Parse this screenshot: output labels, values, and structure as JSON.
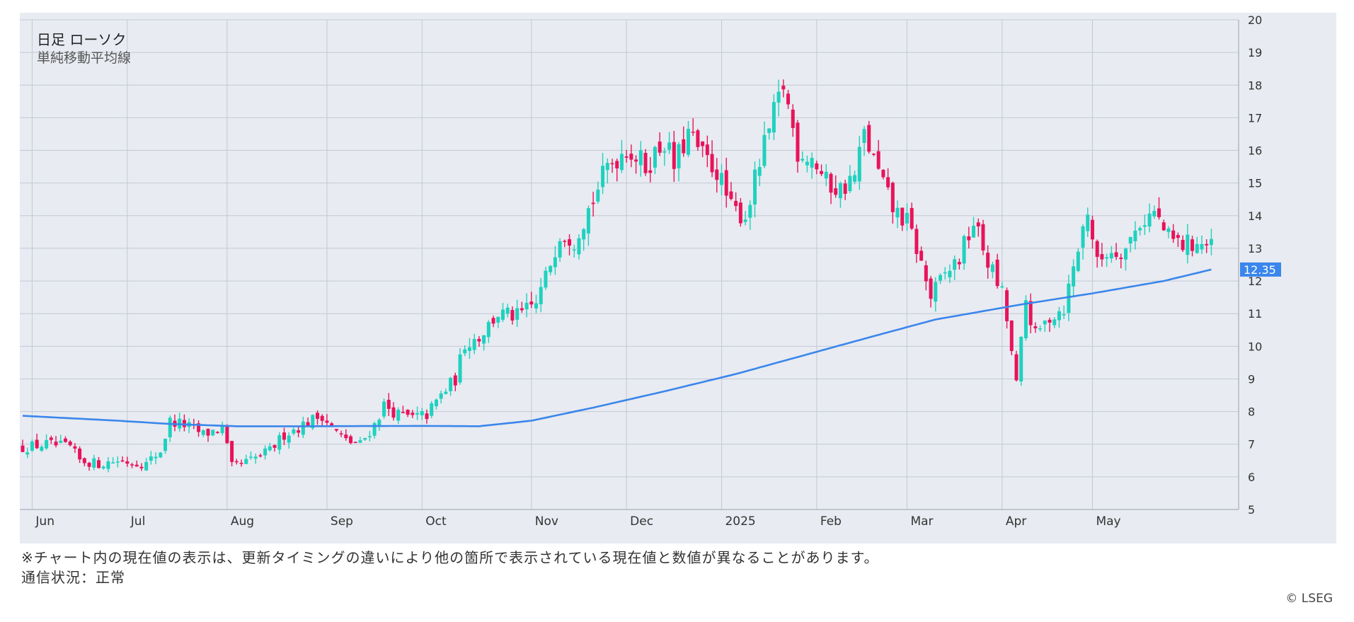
{
  "chart_data": {
    "type": "candlestick",
    "title": "日足 ローソク",
    "subtitle": "単純移動平均線",
    "ylim": [
      5,
      20
    ],
    "y_ticks": [
      5,
      6,
      7,
      8,
      9,
      10,
      11,
      12,
      13,
      14,
      15,
      16,
      17,
      18,
      19,
      20
    ],
    "x_ticks": [
      {
        "label": "Jun",
        "day": 2
      },
      {
        "label": "Jul",
        "day": 22
      },
      {
        "label": "Aug",
        "day": 43
      },
      {
        "label": "Sep",
        "day": 64
      },
      {
        "label": "Oct",
        "day": 84
      },
      {
        "label": "Nov",
        "day": 107
      },
      {
        "label": "Dec",
        "day": 127
      },
      {
        "label": "2025",
        "day": 147
      },
      {
        "label": "Feb",
        "day": 167
      },
      {
        "label": "Mar",
        "day": 186
      },
      {
        "label": "Apr",
        "day": 206
      },
      {
        "label": "May",
        "day": 225
      }
    ],
    "total_days": 255,
    "close_anchors": [
      [
        0,
        6.9
      ],
      [
        5,
        7.0
      ],
      [
        10,
        6.9
      ],
      [
        12,
        6.5
      ],
      [
        16,
        6.4
      ],
      [
        20,
        6.5
      ],
      [
        26,
        6.4
      ],
      [
        29,
        6.8
      ],
      [
        31,
        7.7
      ],
      [
        34,
        7.6
      ],
      [
        38,
        7.3
      ],
      [
        42,
        7.5
      ],
      [
        44,
        6.3
      ],
      [
        48,
        6.5
      ],
      [
        52,
        6.8
      ],
      [
        55,
        7.3
      ],
      [
        59,
        7.6
      ],
      [
        63,
        7.9
      ],
      [
        65,
        7.5
      ],
      [
        68,
        7.1
      ],
      [
        71,
        7.0
      ],
      [
        74,
        7.6
      ],
      [
        76,
        8.2
      ],
      [
        79,
        7.9
      ],
      [
        82,
        7.8
      ],
      [
        85,
        7.9
      ],
      [
        88,
        8.5
      ],
      [
        91,
        9.0
      ],
      [
        93,
        10.1
      ],
      [
        96,
        10.3
      ],
      [
        100,
        11.0
      ],
      [
        104,
        10.9
      ],
      [
        108,
        11.3
      ],
      [
        110,
        12.1
      ],
      [
        113,
        13.5
      ],
      [
        116,
        13.3
      ],
      [
        120,
        14.5
      ],
      [
        123,
        15.5
      ],
      [
        127,
        16.1
      ],
      [
        131,
        15.5
      ],
      [
        135,
        16.3
      ],
      [
        137,
        15.5
      ],
      [
        140,
        16.5
      ],
      [
        143,
        15.8
      ],
      [
        146,
        15.4
      ],
      [
        149,
        14.2
      ],
      [
        152,
        14.0
      ],
      [
        155,
        15.6
      ],
      [
        157,
        16.6
      ],
      [
        160,
        18.0
      ],
      [
        163,
        16.0
      ],
      [
        166,
        15.8
      ],
      [
        169,
        15.0
      ],
      [
        172,
        14.8
      ],
      [
        175,
        15.2
      ],
      [
        177,
        16.5
      ],
      [
        180,
        15.3
      ],
      [
        183,
        14.2
      ],
      [
        186,
        13.8
      ],
      [
        188,
        13.0
      ],
      [
        191,
        11.5
      ],
      [
        194,
        12.2
      ],
      [
        197,
        12.7
      ],
      [
        200,
        13.8
      ],
      [
        203,
        12.6
      ],
      [
        206,
        11.6
      ],
      [
        207,
        10.8
      ],
      [
        209,
        8.8
      ],
      [
        211,
        11.4
      ],
      [
        213,
        10.3
      ],
      [
        216,
        10.9
      ],
      [
        219,
        11.2
      ],
      [
        222,
        13.0
      ],
      [
        224,
        14.2
      ],
      [
        226,
        12.5
      ],
      [
        228,
        12.9
      ],
      [
        232,
        13.0
      ],
      [
        235,
        13.8
      ],
      [
        238,
        14.1
      ],
      [
        241,
        13.3
      ],
      [
        244,
        13.1
      ],
      [
        247,
        13.2
      ],
      [
        250,
        13.0
      ]
    ],
    "sma": [
      [
        0,
        7.87
      ],
      [
        20,
        7.72
      ],
      [
        31,
        7.62
      ],
      [
        45,
        7.55
      ],
      [
        60,
        7.55
      ],
      [
        84,
        7.56
      ],
      [
        96,
        7.55
      ],
      [
        107,
        7.72
      ],
      [
        120,
        8.12
      ],
      [
        135,
        8.62
      ],
      [
        150,
        9.15
      ],
      [
        165,
        9.75
      ],
      [
        180,
        10.35
      ],
      [
        192,
        10.82
      ],
      [
        210,
        11.28
      ],
      [
        225,
        11.62
      ],
      [
        240,
        12.0
      ],
      [
        250,
        12.35
      ]
    ],
    "current_value": 12.35,
    "current_value_label": "12.35",
    "up_color": "#1fd1bf",
    "down_color": "#e8135a",
    "sma_color": "#3a86ec",
    "grid_color": "#c3c9d4",
    "panel_background": "#e8ebf1"
  },
  "footer": {
    "note": "※チャート内の現在値の表示は、更新タイミングの違いにより他の箇所で表示されている現在値と数値が異なることがあります。",
    "status": "通信状況：正常",
    "copyright": "© LSEG"
  }
}
